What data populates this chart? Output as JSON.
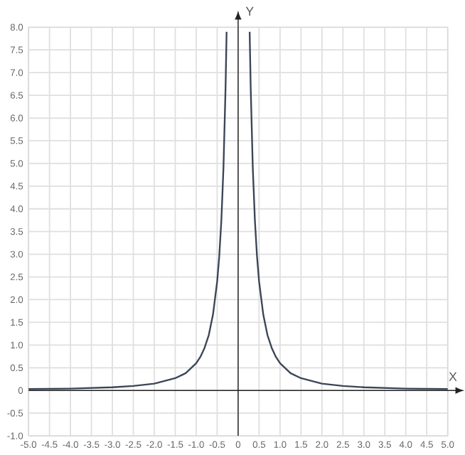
{
  "chart_data": {
    "type": "line",
    "xlabel": "X",
    "ylabel": "Y",
    "x": [
      -5,
      -4,
      -3,
      -2.5,
      -2,
      -1.5,
      -1.25,
      -1,
      -0.9,
      -0.8,
      -0.7,
      -0.6,
      -0.5,
      -0.45,
      -0.4,
      -0.35,
      -0.3,
      -0.275,
      0,
      0.275,
      0.3,
      0.35,
      0.4,
      0.45,
      0.5,
      0.6,
      0.7,
      0.8,
      0.9,
      1,
      1.25,
      1.5,
      2,
      2.5,
      3,
      4,
      5
    ],
    "series": [
      {
        "color": "#3a4656",
        "values": [
          0.03,
          0.04,
          0.07,
          0.1,
          0.15,
          0.27,
          0.38,
          0.6,
          0.74,
          0.94,
          1.22,
          1.67,
          2.4,
          2.96,
          3.75,
          4.9,
          6.67,
          7.9,
          null,
          7.9,
          6.67,
          4.9,
          3.75,
          2.96,
          2.4,
          1.67,
          1.22,
          0.94,
          0.74,
          0.6,
          0.38,
          0.27,
          0.15,
          0.1,
          0.07,
          0.04,
          0.03
        ]
      }
    ],
    "xlim": [
      -5,
      5
    ],
    "ylim": [
      -1,
      8
    ],
    "xticks": [
      {
        "value": -5,
        "label": "-5.0"
      },
      {
        "value": -4.5,
        "label": "-4.5"
      },
      {
        "value": -4,
        "label": "-4.0"
      },
      {
        "value": -3.5,
        "label": "-3.5"
      },
      {
        "value": -3,
        "label": "-3.0"
      },
      {
        "value": -2.5,
        "label": "-2.5"
      },
      {
        "value": -2,
        "label": "-2.0"
      },
      {
        "value": -1.5,
        "label": "-1.5"
      },
      {
        "value": -1,
        "label": "-1.0"
      },
      {
        "value": -0.5,
        "label": "-0.5"
      },
      0,
      {
        "value": 0.5,
        "label": "0.5"
      },
      {
        "value": 1,
        "label": "1.0"
      },
      {
        "value": 1.5,
        "label": "1.5"
      },
      {
        "value": 2,
        "label": "2.0"
      },
      {
        "value": 2.5,
        "label": "2.5"
      },
      {
        "value": 3,
        "label": "3.0"
      },
      {
        "value": 3.5,
        "label": "3.5"
      },
      {
        "value": 4,
        "label": "4.0"
      },
      {
        "value": 4.5,
        "label": "4.5"
      },
      {
        "value": 5,
        "label": "5.0"
      }
    ],
    "yticks": [
      {
        "value": -1,
        "label": "-1.0"
      },
      {
        "value": -0.5,
        "label": "-0.5"
      },
      0,
      {
        "value": 0.5,
        "label": "0.5"
      },
      {
        "value": 1,
        "label": "1.0"
      },
      {
        "value": 1.5,
        "label": "1.5"
      },
      {
        "value": 2,
        "label": "2.0"
      },
      {
        "value": 2.5,
        "label": "2.5"
      },
      {
        "value": 3,
        "label": "3.0"
      },
      {
        "value": 3.5,
        "label": "3.5"
      },
      {
        "value": 4,
        "label": "4.0"
      },
      {
        "value": 4.5,
        "label": "4.5"
      },
      {
        "value": 5,
        "label": "5.0"
      },
      {
        "value": 5.5,
        "label": "5.5"
      },
      {
        "value": 6,
        "label": "6.0"
      },
      {
        "value": 6.5,
        "label": "6.5"
      },
      {
        "value": 7,
        "label": "7.0"
      },
      {
        "value": 7.5,
        "label": "7.5"
      },
      {
        "value": 8,
        "label": "8.0"
      }
    ],
    "grid": true,
    "marker": "none",
    "line_style": "solid"
  }
}
